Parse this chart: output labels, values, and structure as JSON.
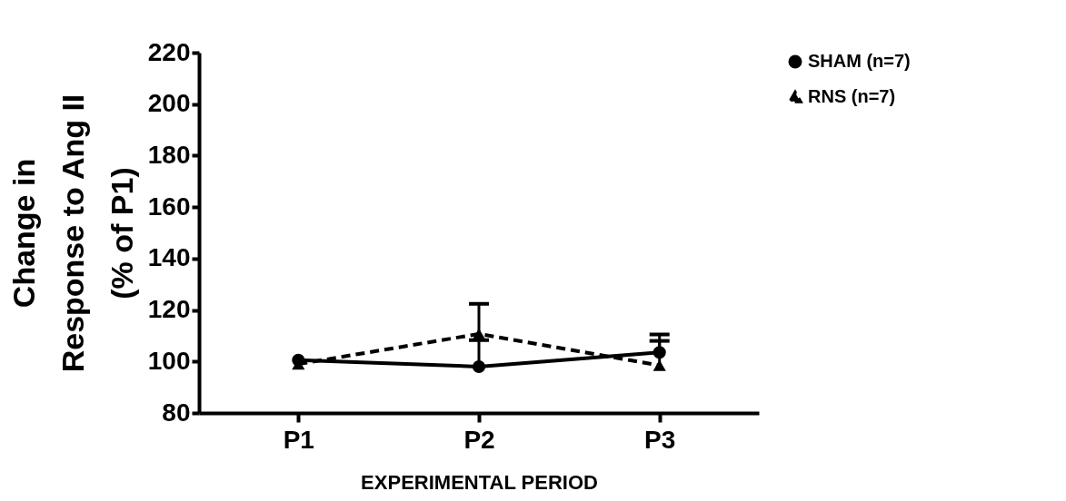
{
  "chart_data": {
    "type": "line",
    "xlabel": "EXPERIMENTAL PERIOD",
    "ylabel": "Change in\nResponse to Ang II\n(% of P1)",
    "categories": [
      "P1",
      "P2",
      "P3"
    ],
    "ylim": [
      80,
      220
    ],
    "yticks": [
      80,
      100,
      120,
      140,
      160,
      180,
      200,
      220
    ],
    "grid": false,
    "legend": "top right",
    "series": [
      {
        "name": "SHAM (n=7)",
        "color": "#000000",
        "marker": "circle",
        "line_style": "solid",
        "values": [
          100.5,
          98,
          103.5
        ],
        "errors": [
          null,
          [
            98,
            108.3
          ],
          [
            103.5,
            110.5
          ]
        ]
      },
      {
        "name": "RNS (n=7)",
        "color": "#000000",
        "marker": "triangle",
        "line_style": "dashed",
        "values": [
          99,
          110.7,
          98.5
        ],
        "errors": [
          null,
          [
            110.7,
            122.4
          ],
          [
            98.5,
            108
          ]
        ]
      }
    ]
  }
}
